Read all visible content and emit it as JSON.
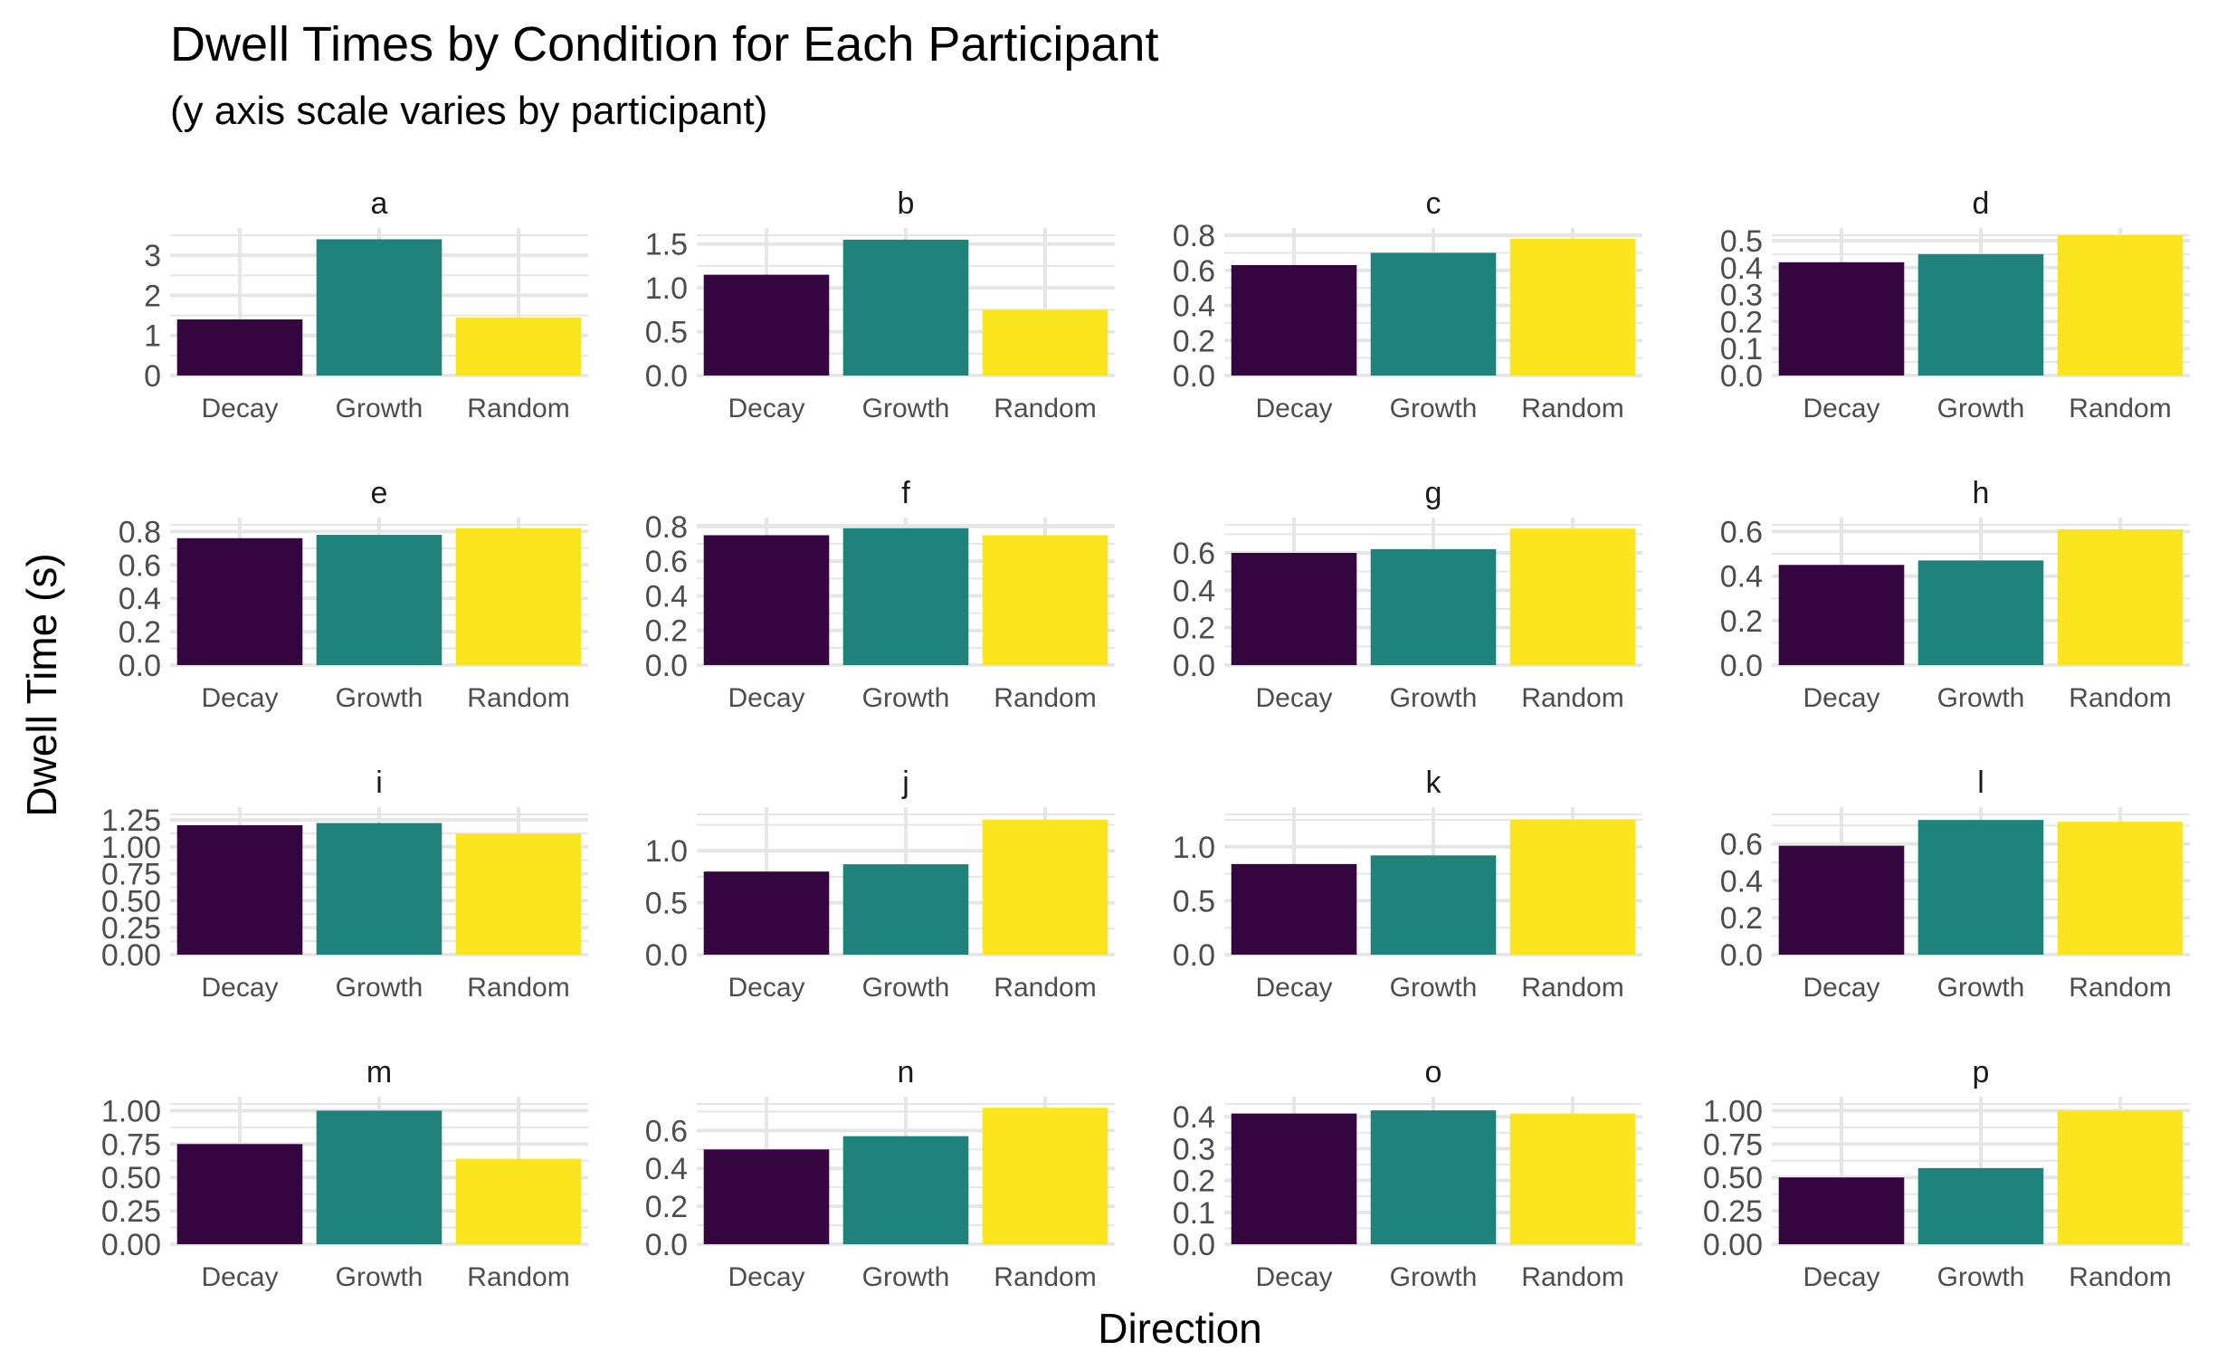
{
  "chart_data": {
    "type": "bar",
    "title": "Dwell Times by Condition for Each Participant",
    "subtitle": "(y axis scale varies by participant)",
    "xlabel": "Direction",
    "ylabel": "Dwell Time (s)",
    "categories": [
      "Decay",
      "Growth",
      "Random"
    ],
    "category_colors": [
      "#35053f",
      "#20837b",
      "#fbe51f"
    ],
    "grid": true,
    "legend": "none",
    "panels": [
      {
        "name": "a",
        "values": [
          1.4,
          3.4,
          1.45
        ],
        "ylim": [
          0,
          3.5
        ],
        "yticks": [
          "0",
          "1",
          "2",
          "3"
        ],
        "ytick_values": [
          0,
          1,
          2,
          3
        ]
      },
      {
        "name": "b",
        "values": [
          1.15,
          1.55,
          0.75
        ],
        "ylim": [
          0,
          1.6
        ],
        "yticks": [
          "0.0",
          "0.5",
          "1.0",
          "1.5"
        ],
        "ytick_values": [
          0,
          0.5,
          1.0,
          1.5
        ]
      },
      {
        "name": "c",
        "values": [
          0.63,
          0.7,
          0.78
        ],
        "ylim": [
          0,
          0.8
        ],
        "yticks": [
          "0.0",
          "0.2",
          "0.4",
          "0.6",
          "0.8"
        ],
        "ytick_values": [
          0,
          0.2,
          0.4,
          0.6,
          0.8
        ]
      },
      {
        "name": "d",
        "values": [
          0.42,
          0.45,
          0.52
        ],
        "ylim": [
          0,
          0.52
        ],
        "yticks": [
          "0.0",
          "0.1",
          "0.2",
          "0.3",
          "0.4",
          "0.5"
        ],
        "ytick_values": [
          0,
          0.1,
          0.2,
          0.3,
          0.4,
          0.5
        ]
      },
      {
        "name": "e",
        "values": [
          0.76,
          0.78,
          0.82
        ],
        "ylim": [
          0,
          0.84
        ],
        "yticks": [
          "0.0",
          "0.2",
          "0.4",
          "0.6",
          "0.8"
        ],
        "ytick_values": [
          0,
          0.2,
          0.4,
          0.6,
          0.8
        ]
      },
      {
        "name": "f",
        "values": [
          0.75,
          0.79,
          0.75
        ],
        "ylim": [
          0,
          0.81
        ],
        "yticks": [
          "0.0",
          "0.2",
          "0.4",
          "0.6",
          "0.8"
        ],
        "ytick_values": [
          0,
          0.2,
          0.4,
          0.6,
          0.8
        ]
      },
      {
        "name": "g",
        "values": [
          0.6,
          0.62,
          0.73
        ],
        "ylim": [
          0,
          0.75
        ],
        "yticks": [
          "0.0",
          "0.2",
          "0.4",
          "0.6"
        ],
        "ytick_values": [
          0,
          0.2,
          0.4,
          0.6
        ]
      },
      {
        "name": "h",
        "values": [
          0.45,
          0.47,
          0.61
        ],
        "ylim": [
          0,
          0.63
        ],
        "yticks": [
          "0.0",
          "0.2",
          "0.4",
          "0.6"
        ],
        "ytick_values": [
          0,
          0.2,
          0.4,
          0.6
        ]
      },
      {
        "name": "i",
        "values": [
          1.2,
          1.22,
          1.12
        ],
        "ylim": [
          0,
          1.3
        ],
        "yticks": [
          "0.00",
          "0.25",
          "0.50",
          "0.75",
          "1.00",
          "1.25"
        ],
        "ytick_values": [
          0,
          0.25,
          0.5,
          0.75,
          1.0,
          1.25
        ]
      },
      {
        "name": "j",
        "values": [
          0.8,
          0.87,
          1.3
        ],
        "ylim": [
          0,
          1.35
        ],
        "yticks": [
          "0.0",
          "0.5",
          "1.0"
        ],
        "ytick_values": [
          0,
          0.5,
          1.0
        ]
      },
      {
        "name": "k",
        "values": [
          0.84,
          0.92,
          1.25
        ],
        "ylim": [
          0,
          1.3
        ],
        "yticks": [
          "0.0",
          "0.5",
          "1.0"
        ],
        "ytick_values": [
          0,
          0.5,
          1.0
        ]
      },
      {
        "name": "l",
        "values": [
          0.59,
          0.73,
          0.72
        ],
        "ylim": [
          0,
          0.76
        ],
        "yticks": [
          "0.0",
          "0.2",
          "0.4",
          "0.6"
        ],
        "ytick_values": [
          0,
          0.2,
          0.4,
          0.6
        ]
      },
      {
        "name": "m",
        "values": [
          0.75,
          1.0,
          0.64
        ],
        "ylim": [
          0,
          1.05
        ],
        "yticks": [
          "0.00",
          "0.25",
          "0.50",
          "0.75",
          "1.00"
        ],
        "ytick_values": [
          0,
          0.25,
          0.5,
          0.75,
          1.0
        ]
      },
      {
        "name": "n",
        "values": [
          0.5,
          0.57,
          0.72
        ],
        "ylim": [
          0,
          0.74
        ],
        "yticks": [
          "0.0",
          "0.2",
          "0.4",
          "0.6"
        ],
        "ytick_values": [
          0,
          0.2,
          0.4,
          0.6
        ]
      },
      {
        "name": "o",
        "values": [
          0.41,
          0.42,
          0.41
        ],
        "ylim": [
          0,
          0.44
        ],
        "yticks": [
          "0.0",
          "0.1",
          "0.2",
          "0.3",
          "0.4"
        ],
        "ytick_values": [
          0,
          0.1,
          0.2,
          0.3,
          0.4
        ]
      },
      {
        "name": "p",
        "values": [
          0.5,
          0.57,
          1.0
        ],
        "ylim": [
          0,
          1.05
        ],
        "yticks": [
          "0.00",
          "0.25",
          "0.50",
          "0.75",
          "1.00"
        ],
        "ytick_values": [
          0,
          0.25,
          0.5,
          0.75,
          1.0
        ]
      }
    ]
  }
}
